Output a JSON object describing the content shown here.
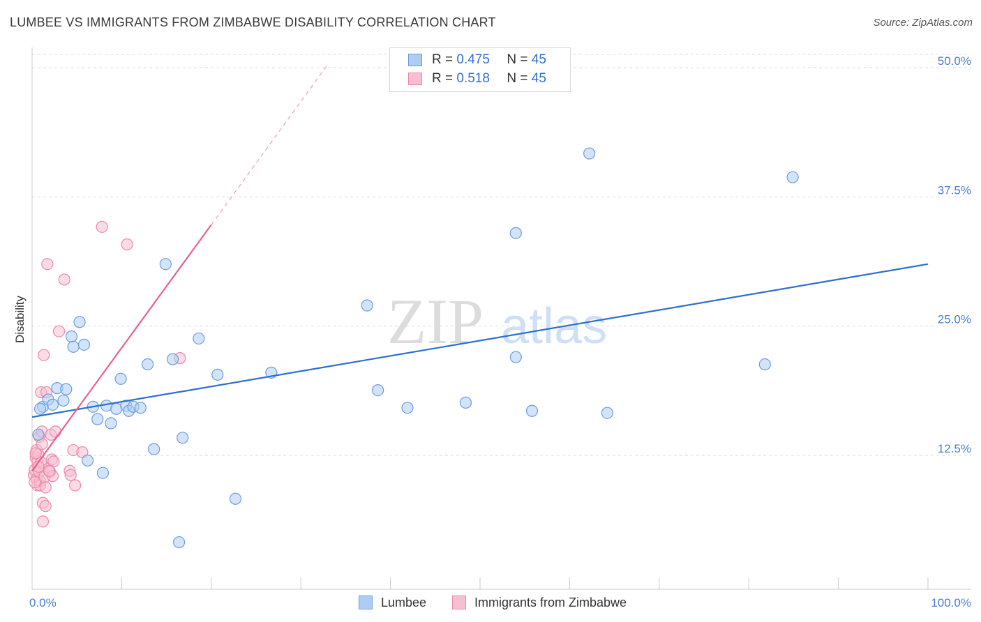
{
  "title": "LUMBEE VS IMMIGRANTS FROM ZIMBABWE DISABILITY CORRELATION CHART",
  "source": "Source: ZipAtlas.com",
  "colors": {
    "blue_fill": "#aecdf3",
    "blue_stroke": "#6b9de0",
    "blue_line": "#2b6fd0",
    "pink_fill": "#f7c0d2",
    "pink_stroke": "#ee88a8",
    "pink_line": "#e8608e",
    "tick_label": "#4a7fd0",
    "grid": "#dddddd"
  },
  "legend": {
    "r_label": "R =",
    "n_label": "N =",
    "rows": [
      {
        "r": "0.475",
        "n": "45"
      },
      {
        "r": "0.518",
        "n": "45"
      }
    ]
  },
  "chart_data": {
    "type": "scatter",
    "title": "LUMBEE VS IMMIGRANTS FROM ZIMBABWE DISABILITY CORRELATION CHART",
    "xlabel": "",
    "ylabel": "Disability",
    "xlim": [
      0,
      100
    ],
    "ylim": [
      0,
      52
    ],
    "x_tick_labels": [
      "0.0%",
      "100.0%"
    ],
    "y_ticks": [
      12.5,
      25.0,
      37.5,
      50.0
    ],
    "y_tick_labels": [
      "12.5%",
      "25.0%",
      "37.5%",
      "50.0%"
    ],
    "watermark": "ZIPatlas",
    "series": [
      {
        "name": "Lumbee",
        "r": 0.475,
        "n": 45,
        "trend": {
          "x": [
            0,
            100
          ],
          "y": [
            16.2,
            31.0
          ]
        },
        "points": [
          {
            "x": 0.7,
            "y": 14.5
          },
          {
            "x": 1.2,
            "y": 17.2
          },
          {
            "x": 1.8,
            "y": 17.9
          },
          {
            "x": 2.3,
            "y": 17.4
          },
          {
            "x": 2.8,
            "y": 19.0
          },
          {
            "x": 3.5,
            "y": 17.8
          },
          {
            "x": 3.8,
            "y": 18.9
          },
          {
            "x": 4.4,
            "y": 24.0
          },
          {
            "x": 4.6,
            "y": 23.0
          },
          {
            "x": 5.3,
            "y": 25.4
          },
          {
            "x": 5.8,
            "y": 23.2
          },
          {
            "x": 6.2,
            "y": 12.0
          },
          {
            "x": 6.8,
            "y": 17.2
          },
          {
            "x": 7.3,
            "y": 16.0
          },
          {
            "x": 7.9,
            "y": 10.8
          },
          {
            "x": 8.3,
            "y": 17.3
          },
          {
            "x": 8.8,
            "y": 15.6
          },
          {
            "x": 9.4,
            "y": 17.0
          },
          {
            "x": 9.9,
            "y": 19.9
          },
          {
            "x": 10.5,
            "y": 17.3
          },
          {
            "x": 10.8,
            "y": 16.8
          },
          {
            "x": 11.3,
            "y": 17.2
          },
          {
            "x": 12.1,
            "y": 17.1
          },
          {
            "x": 12.9,
            "y": 21.3
          },
          {
            "x": 13.6,
            "y": 13.1
          },
          {
            "x": 14.9,
            "y": 31.0
          },
          {
            "x": 15.7,
            "y": 21.8
          },
          {
            "x": 16.4,
            "y": 4.1
          },
          {
            "x": 16.8,
            "y": 14.2
          },
          {
            "x": 18.6,
            "y": 23.8
          },
          {
            "x": 20.7,
            "y": 20.3
          },
          {
            "x": 22.7,
            "y": 8.3
          },
          {
            "x": 26.7,
            "y": 20.5
          },
          {
            "x": 37.4,
            "y": 27.0
          },
          {
            "x": 38.6,
            "y": 18.8
          },
          {
            "x": 41.9,
            "y": 17.1
          },
          {
            "x": 48.4,
            "y": 17.6
          },
          {
            "x": 54.0,
            "y": 34.0
          },
          {
            "x": 54.0,
            "y": 22.0
          },
          {
            "x": 55.8,
            "y": 16.8
          },
          {
            "x": 62.2,
            "y": 41.7
          },
          {
            "x": 64.2,
            "y": 16.6
          },
          {
            "x": 81.8,
            "y": 21.3
          },
          {
            "x": 84.9,
            "y": 39.4
          },
          {
            "x": 0.9,
            "y": 17.0
          }
        ]
      },
      {
        "name": "Immigrants from Zimbabwe",
        "r": 0.518,
        "n": 45,
        "trend": {
          "x": [
            0,
            20
          ],
          "y": [
            11.0,
            34.8
          ]
        },
        "trend_dashed": {
          "x": [
            20,
            33
          ],
          "y": [
            34.8,
            50.3
          ]
        },
        "points": [
          {
            "x": 0.2,
            "y": 10.6
          },
          {
            "x": 0.3,
            "y": 11.1
          },
          {
            "x": 0.4,
            "y": 12.3
          },
          {
            "x": 0.5,
            "y": 13.0
          },
          {
            "x": 0.5,
            "y": 10.2
          },
          {
            "x": 0.6,
            "y": 11.9
          },
          {
            "x": 0.6,
            "y": 9.6
          },
          {
            "x": 0.7,
            "y": 12.6
          },
          {
            "x": 0.8,
            "y": 10.9
          },
          {
            "x": 0.8,
            "y": 14.3
          },
          {
            "x": 0.9,
            "y": 10.0
          },
          {
            "x": 0.9,
            "y": 9.6
          },
          {
            "x": 1.0,
            "y": 11.8
          },
          {
            "x": 1.0,
            "y": 18.6
          },
          {
            "x": 1.1,
            "y": 14.8
          },
          {
            "x": 1.1,
            "y": 13.6
          },
          {
            "x": 1.2,
            "y": 7.9
          },
          {
            "x": 1.2,
            "y": 6.1
          },
          {
            "x": 1.3,
            "y": 22.2
          },
          {
            "x": 1.4,
            "y": 10.4
          },
          {
            "x": 1.5,
            "y": 9.4
          },
          {
            "x": 1.5,
            "y": 7.6
          },
          {
            "x": 1.6,
            "y": 18.6
          },
          {
            "x": 1.7,
            "y": 31.0
          },
          {
            "x": 1.8,
            "y": 11.2
          },
          {
            "x": 2.0,
            "y": 10.9
          },
          {
            "x": 2.1,
            "y": 14.5
          },
          {
            "x": 2.2,
            "y": 12.1
          },
          {
            "x": 2.3,
            "y": 10.5
          },
          {
            "x": 2.4,
            "y": 11.9
          },
          {
            "x": 2.6,
            "y": 14.8
          },
          {
            "x": 3.0,
            "y": 24.5
          },
          {
            "x": 3.6,
            "y": 29.5
          },
          {
            "x": 4.2,
            "y": 11.0
          },
          {
            "x": 4.3,
            "y": 10.6
          },
          {
            "x": 4.6,
            "y": 13.0
          },
          {
            "x": 4.8,
            "y": 9.6
          },
          {
            "x": 5.6,
            "y": 12.8
          },
          {
            "x": 7.8,
            "y": 34.6
          },
          {
            "x": 10.6,
            "y": 32.9
          },
          {
            "x": 16.5,
            "y": 21.9
          },
          {
            "x": 0.4,
            "y": 12.7
          },
          {
            "x": 0.7,
            "y": 11.4
          },
          {
            "x": 1.9,
            "y": 11.0
          },
          {
            "x": 0.3,
            "y": 9.9
          }
        ]
      }
    ]
  }
}
